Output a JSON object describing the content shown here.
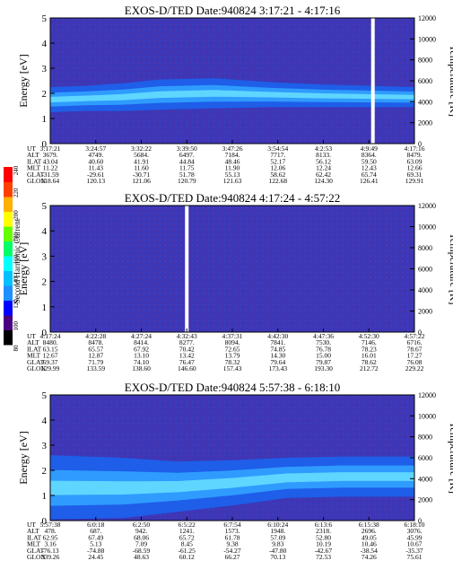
{
  "colorbar": {
    "title": "Second Harmonic Current",
    "ticks": [
      "80",
      "100",
      "120",
      "140",
      "160",
      "180",
      "200",
      "220",
      "240"
    ],
    "colors": [
      "#000000",
      "#4b0082",
      "#0000ff",
      "#1e90ff",
      "#00c0ff",
      "#00ffff",
      "#00ff66",
      "#66ff00",
      "#ffff00",
      "#ffb000",
      "#ff4000",
      "#ff0000"
    ]
  },
  "chart_data": [
    {
      "type": "heatmap",
      "title": "EXOS-D/TED   Date:940824   3:17:21 - 4:17:16",
      "ylabel": "Energy [eV]",
      "y2label": "Temperature [K]",
      "ylim": [
        0,
        5
      ],
      "y2lim": [
        0,
        12000
      ],
      "yticks": [
        "0",
        "1",
        "2",
        "3",
        "4",
        "5"
      ],
      "y2ticks": [
        "0",
        "2000",
        "4000",
        "6000",
        "8000",
        "10000",
        "12000"
      ],
      "orbit_rows": [
        {
          "label": "UT",
          "values": [
            "3:17:21",
            "3:24:57",
            "3:32:22",
            "3:39:50",
            "3:47:26",
            "3:54:54",
            "4:2:53",
            "4:9:49",
            "4:17:16"
          ]
        },
        {
          "label": "ALT",
          "values": [
            "3679.",
            "4749.",
            "5684.",
            "6497.",
            "7184.",
            "7717.",
            "8133.",
            "8364.",
            "8479."
          ]
        },
        {
          "label": "ILAT",
          "values": [
            "43.04",
            "40.60",
            "41.91",
            "44.84",
            "48.46",
            "52.17",
            "56.12",
            "59.50",
            "63.09"
          ]
        },
        {
          "label": "MLT",
          "values": [
            "11.22",
            "11.43",
            "11.60",
            "11.75",
            "11.90",
            "12.06",
            "12.24",
            "12.43",
            "12.66"
          ]
        },
        {
          "label": "GLAT",
          "values": [
            "-31.59",
            "-29.61",
            "-30.71",
            "51.78",
            "55.13",
            "58.62",
            "62.42",
            "65.74",
            "69.31"
          ]
        },
        {
          "label": "GLON",
          "values": [
            "118.64",
            "120.13",
            "121.06",
            "120.79",
            "121.63",
            "122.68",
            "124.30",
            "126.41",
            "129.91"
          ]
        }
      ],
      "band": [
        [
          0,
          1.75,
          0.5
        ],
        [
          0.1,
          1.8,
          0.5
        ],
        [
          0.2,
          1.85,
          0.55
        ],
        [
          0.3,
          1.95,
          0.6
        ],
        [
          0.45,
          2.0,
          0.6
        ],
        [
          0.6,
          1.95,
          0.5
        ],
        [
          0.75,
          1.9,
          0.45
        ],
        [
          1.0,
          1.85,
          0.4
        ]
      ],
      "gaps": [
        0.886
      ]
    },
    {
      "type": "heatmap",
      "title": "EXOS-D/TED   Date:940824   4:17:24 - 4:57:22",
      "ylabel": "Energy [eV]",
      "y2label": "Temperature [K]",
      "ylim": [
        0,
        5
      ],
      "y2lim": [
        0,
        12000
      ],
      "yticks": [
        "0",
        "1",
        "2",
        "3",
        "4",
        "5"
      ],
      "y2ticks": [
        "0",
        "2000",
        "4000",
        "6000",
        "8000",
        "10000",
        "12000"
      ],
      "orbit_rows": [
        {
          "label": "UT",
          "values": [
            "4:17:24",
            "4:22:28",
            "4:27:24",
            "4:32:43",
            "4:37:31",
            "4:42:30",
            "4:47:36",
            "4:52:30",
            "4:57:22"
          ]
        },
        {
          "label": "ALT",
          "values": [
            "8480.",
            "8478.",
            "8414.",
            "8277.",
            "8094.",
            "7841.",
            "7530.",
            "7146.",
            "6716."
          ]
        },
        {
          "label": "ILAT",
          "values": [
            "63.15",
            "65.57",
            "67.92",
            "70.42",
            "72.65",
            "74.85",
            "76.78",
            "78.23",
            "78.67"
          ]
        },
        {
          "label": "MLT",
          "values": [
            "12.67",
            "12.87",
            "13.10",
            "13.42",
            "13.79",
            "14.30",
            "15.00",
            "16.01",
            "17.27"
          ]
        },
        {
          "label": "GLAT",
          "values": [
            "69.37",
            "71.79",
            "74.10",
            "76.47",
            "78.32",
            "79.64",
            "79.87",
            "78.62",
            "76.08"
          ]
        },
        {
          "label": "GLON",
          "values": [
            "129.99",
            "133.59",
            "138.60",
            "146.60",
            "157.43",
            "173.43",
            "193.30",
            "212.72",
            "229.22"
          ]
        }
      ],
      "band": [],
      "gaps": [
        0.375
      ]
    },
    {
      "type": "heatmap",
      "title": "EXOS-D/TED   Date:940824   5:57:38 - 6:18:10",
      "ylabel": "Energy [eV]",
      "y2label": "Temperature [K]",
      "ylim": [
        0,
        5
      ],
      "y2lim": [
        0,
        12000
      ],
      "yticks": [
        "0",
        "1",
        "2",
        "3",
        "4",
        "5"
      ],
      "y2ticks": [
        "0",
        "2000",
        "4000",
        "6000",
        "8000",
        "10000",
        "12000"
      ],
      "orbit_rows": [
        {
          "label": "UT",
          "values": [
            "5:57:38",
            "6:0:18",
            "6:2:50",
            "6:5:22",
            "6:7:54",
            "6:10:24",
            "6:13:6",
            "6:15:38",
            "6:18:10"
          ]
        },
        {
          "label": "ALT",
          "values": [
            "478.",
            "687.",
            "942.",
            "1241.",
            "1573.",
            "1948.",
            "2318.",
            "2696.",
            "3076."
          ]
        },
        {
          "label": "ILAT",
          "values": [
            "62.95",
            "67.49",
            "68.06",
            "65.72",
            "61.78",
            "57.09",
            "52.80",
            "49.05",
            "45.99"
          ]
        },
        {
          "label": "MLT",
          "values": [
            "3.16",
            "5.13",
            "7.09",
            "8.45",
            "9.38",
            "9.83",
            "10.19",
            "10.46",
            "10.67"
          ]
        },
        {
          "label": "GLAT",
          "values": [
            "-76.13",
            "-74.88",
            "-68.59",
            "-61.25",
            "-54.27",
            "-47.80",
            "-42.67",
            "-38.54",
            "-35.37"
          ]
        },
        {
          "label": "GLON",
          "values": [
            "339.26",
            "24.45",
            "48.63",
            "60.12",
            "66.27",
            "70.13",
            "72.53",
            "74.26",
            "75.61"
          ]
        }
      ],
      "band": [
        [
          0,
          1.3,
          1.3
        ],
        [
          0.2,
          1.3,
          1.2
        ],
        [
          0.35,
          1.35,
          1.0
        ],
        [
          0.5,
          1.5,
          0.9
        ],
        [
          0.65,
          1.7,
          0.8
        ],
        [
          0.8,
          1.75,
          0.8
        ],
        [
          1.0,
          1.75,
          0.8
        ]
      ],
      "gaps": []
    }
  ]
}
